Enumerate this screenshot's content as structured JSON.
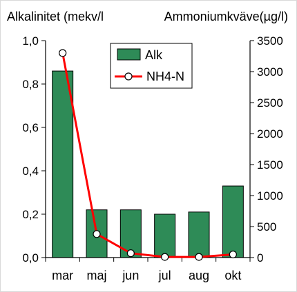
{
  "chart_data": {
    "type": "bar",
    "categories": [
      "mar",
      "maj",
      "jun",
      "jul",
      "aug",
      "okt"
    ],
    "series": [
      {
        "name": "Alk",
        "type": "bar",
        "axis": "left",
        "color": "#2e8b57",
        "values": [
          0.86,
          0.22,
          0.22,
          0.2,
          0.21,
          0.33
        ]
      },
      {
        "name": "NH4-N",
        "type": "line",
        "axis": "right",
        "color": "#ff0000",
        "values": [
          3300,
          380,
          70,
          10,
          10,
          50
        ]
      }
    ],
    "ylabel_left": "Alkalinitet (mekv/l",
    "ylabel_right": "Ammoniumkväve(µg/l)",
    "ylim_left": [
      0,
      1.0
    ],
    "ylim_right": [
      0,
      3500
    ],
    "yticks_left": [
      "0,0",
      "0,2",
      "0,4",
      "0,6",
      "0,8",
      "1,0"
    ],
    "yticks_right": [
      "0",
      "500",
      "1000",
      "1500",
      "2000",
      "2500",
      "3000",
      "3500"
    ],
    "grid": false,
    "legend": "top-center"
  }
}
